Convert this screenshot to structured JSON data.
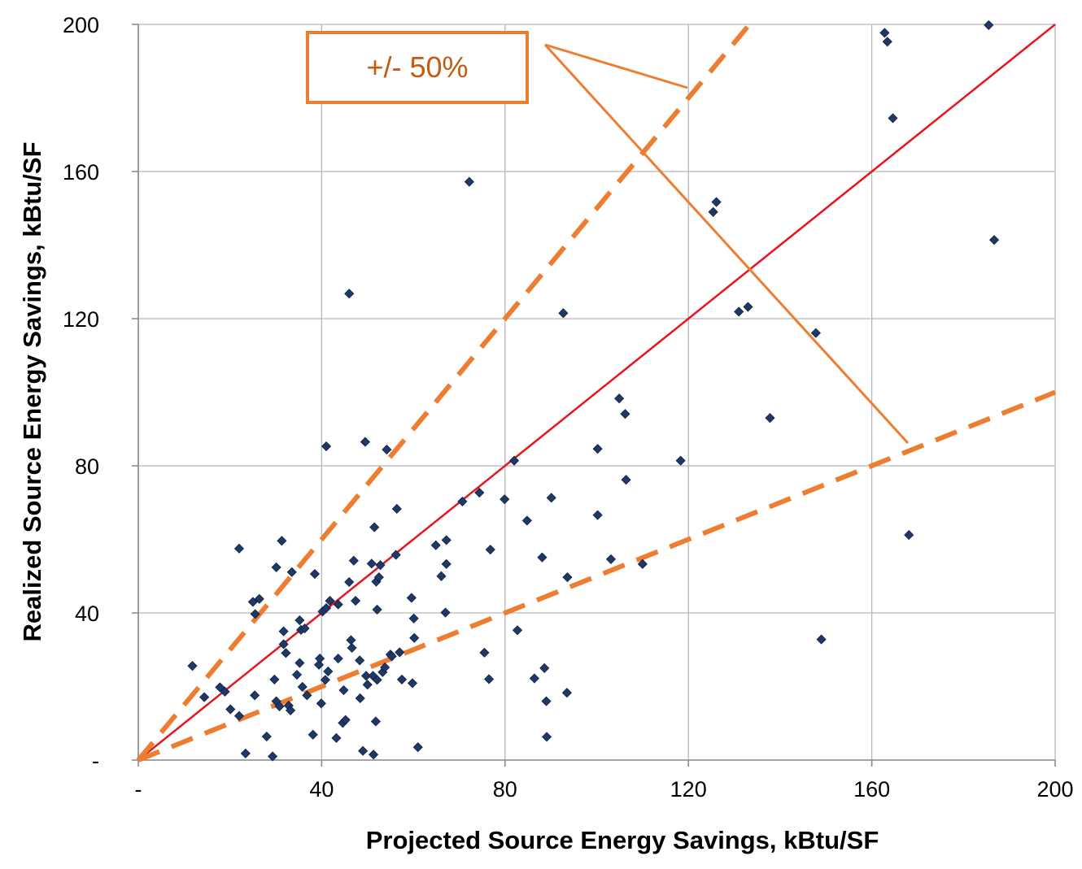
{
  "chart_data": {
    "type": "scatter",
    "title": "",
    "xlabel": "Projected Source Energy Savings, kBtu/SF",
    "ylabel": "Realized Source Energy Savings, kBtu/SF",
    "xlim": [
      0,
      200
    ],
    "ylim": [
      0,
      200
    ],
    "grid": true,
    "x_ticks": [
      "-",
      "40",
      "80",
      "120",
      "160",
      "200"
    ],
    "y_ticks": [
      "-",
      "40",
      "80",
      "120",
      "160",
      "200"
    ],
    "annotation": "+/- 50%",
    "colors": {
      "points": "#1f3864",
      "one_to_one_line": "#e8141c",
      "band_lines": "#ed7d31",
      "grid": "#b7b7b7"
    },
    "reference_lines": [
      {
        "kind": "1:1",
        "slope": 1.0,
        "style": "solid"
      },
      {
        "kind": "+50%",
        "slope": 1.5,
        "style": "dashed"
      },
      {
        "kind": "-50%",
        "slope": 0.5,
        "style": "dashed"
      }
    ],
    "points": [
      [
        11.8,
        25.6
      ],
      [
        14.4,
        17.1
      ],
      [
        17.8,
        19.8
      ],
      [
        18.9,
        18.6
      ],
      [
        20.1,
        13.8
      ],
      [
        22.0,
        12.0
      ],
      [
        22.0,
        57.5
      ],
      [
        23.4,
        1.8
      ],
      [
        25.0,
        43.0
      ],
      [
        25.4,
        17.6
      ],
      [
        25.5,
        39.7
      ],
      [
        26.4,
        43.8
      ],
      [
        28.0,
        6.4
      ],
      [
        29.3,
        1.0
      ],
      [
        29.7,
        21.9
      ],
      [
        30.1,
        52.4
      ],
      [
        30.1,
        16.0
      ],
      [
        30.8,
        14.6
      ],
      [
        31.3,
        59.6
      ],
      [
        31.7,
        31.5
      ],
      [
        31.7,
        35.0
      ],
      [
        32.2,
        29.1
      ],
      [
        32.8,
        14.8
      ],
      [
        33.2,
        13.5
      ],
      [
        33.5,
        51.1
      ],
      [
        34.6,
        23.2
      ],
      [
        35.2,
        38.0
      ],
      [
        35.2,
        26.4
      ],
      [
        35.5,
        35.4
      ],
      [
        35.8,
        19.9
      ],
      [
        36.3,
        35.8
      ],
      [
        36.8,
        17.6
      ],
      [
        38.1,
        6.9
      ],
      [
        38.5,
        50.6
      ],
      [
        39.4,
        25.9
      ],
      [
        39.6,
        27.6
      ],
      [
        39.9,
        15.4
      ],
      [
        40.2,
        40.4
      ],
      [
        40.8,
        21.8
      ],
      [
        41.0,
        85.3
      ],
      [
        41.0,
        41.3
      ],
      [
        41.4,
        24.1
      ],
      [
        41.8,
        43.3
      ],
      [
        43.2,
        6.0
      ],
      [
        43.6,
        42.3
      ],
      [
        43.6,
        27.6
      ],
      [
        44.6,
        10.1
      ],
      [
        44.8,
        19.0
      ],
      [
        45.2,
        10.9
      ],
      [
        46.0,
        48.4
      ],
      [
        46.0,
        126.8
      ],
      [
        46.4,
        32.6
      ],
      [
        46.6,
        30.5
      ],
      [
        47.0,
        54.2
      ],
      [
        47.4,
        43.3
      ],
      [
        48.3,
        27.1
      ],
      [
        48.4,
        16.8
      ],
      [
        49.0,
        2.5
      ],
      [
        49.5,
        86.5
      ],
      [
        49.7,
        22.9
      ],
      [
        50.0,
        20.5
      ],
      [
        50.9,
        53.4
      ],
      [
        51.2,
        22.9
      ],
      [
        51.3,
        1.5
      ],
      [
        51.5,
        63.3
      ],
      [
        51.8,
        10.5
      ],
      [
        51.9,
        48.5
      ],
      [
        52.1,
        40.9
      ],
      [
        52.1,
        21.8
      ],
      [
        52.5,
        49.7
      ],
      [
        52.8,
        53.0
      ],
      [
        53.3,
        23.9
      ],
      [
        53.8,
        25.2
      ],
      [
        54.2,
        84.4
      ],
      [
        55.0,
        28.7
      ],
      [
        55.3,
        28.2
      ],
      [
        56.2,
        55.8
      ],
      [
        56.4,
        68.3
      ],
      [
        57.0,
        29.3
      ],
      [
        57.5,
        21.9
      ],
      [
        59.6,
        44.1
      ],
      [
        59.8,
        20.9
      ],
      [
        60.1,
        38.5
      ],
      [
        60.2,
        33.2
      ],
      [
        61.0,
        3.5
      ],
      [
        64.9,
        58.4
      ],
      [
        66.1,
        50.0
      ],
      [
        67.2,
        59.8
      ],
      [
        67.0,
        40.1
      ],
      [
        67.2,
        53.3
      ],
      [
        70.7,
        70.3
      ],
      [
        72.2,
        157.2
      ],
      [
        74.4,
        72.7
      ],
      [
        75.5,
        29.2
      ],
      [
        76.5,
        22.0
      ],
      [
        76.8,
        57.2
      ],
      [
        79.9,
        70.9
      ],
      [
        82.0,
        81.4
      ],
      [
        82.7,
        35.3
      ],
      [
        84.8,
        65.1
      ],
      [
        86.4,
        22.2
      ],
      [
        88.1,
        55.1
      ],
      [
        88.6,
        25.0
      ],
      [
        89.0,
        16.0
      ],
      [
        89.1,
        6.3
      ],
      [
        90.1,
        71.3
      ],
      [
        92.7,
        121.5
      ],
      [
        93.5,
        18.3
      ],
      [
        93.6,
        49.7
      ],
      [
        100.2,
        84.6
      ],
      [
        100.2,
        66.6
      ],
      [
        103.1,
        54.6
      ],
      [
        104.9,
        98.3
      ],
      [
        106.2,
        94.1
      ],
      [
        106.4,
        76.2
      ],
      [
        110.0,
        53.3
      ],
      [
        118.3,
        81.4
      ],
      [
        125.4,
        149.0
      ],
      [
        126.1,
        151.7
      ],
      [
        131.0,
        121.9
      ],
      [
        133.0,
        123.2
      ],
      [
        137.8,
        93.0
      ],
      [
        147.8,
        116.1
      ],
      [
        149.0,
        32.8
      ],
      [
        162.8,
        197.7
      ],
      [
        163.4,
        195.3
      ],
      [
        164.6,
        174.5
      ],
      [
        168.1,
        61.2
      ],
      [
        185.5,
        199.8
      ],
      [
        186.7,
        141.4
      ]
    ]
  }
}
